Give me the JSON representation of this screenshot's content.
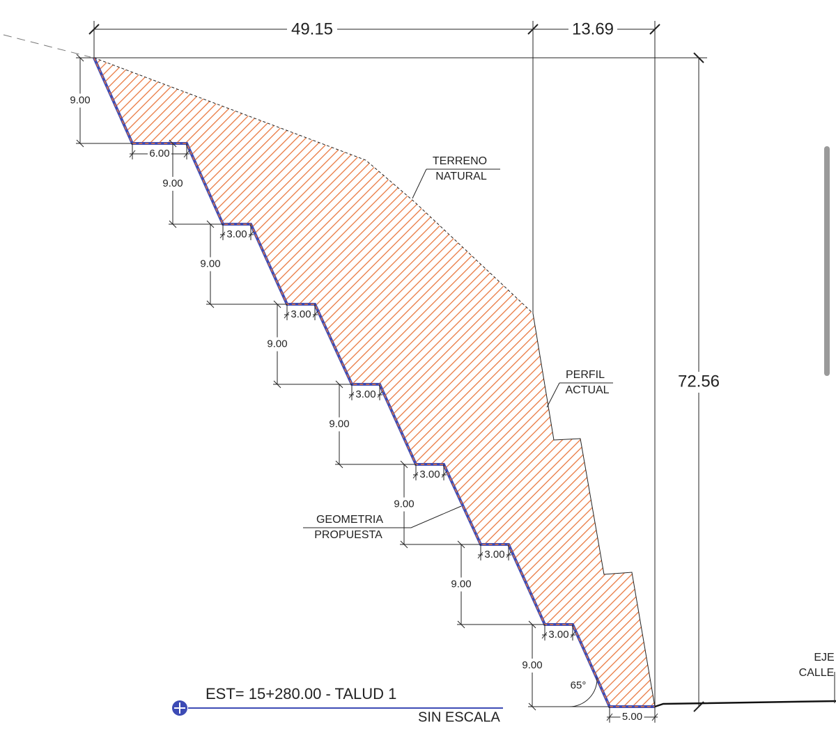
{
  "dimensions": {
    "top_left": "49.15",
    "top_right": "13.69",
    "total_height": "72.56",
    "benches": [
      {
        "height": "9.00",
        "width": "6.00"
      },
      {
        "height": "9.00",
        "width": "3.00"
      },
      {
        "height": "9.00",
        "width": "3.00"
      },
      {
        "height": "9.00",
        "width": "3.00"
      },
      {
        "height": "9.00",
        "width": "3.00"
      },
      {
        "height": "9.00",
        "width": "3.00"
      },
      {
        "height": "9.00",
        "width": "3.00"
      },
      {
        "height": "9.00",
        "width": "5.00"
      }
    ],
    "angle": "65°"
  },
  "labels": {
    "terrain": [
      "TERRENO",
      "NATURAL"
    ],
    "profile": [
      "PERFIL",
      "ACTUAL"
    ],
    "geometry": [
      "GEOMETRIA",
      "PROPUESTA"
    ],
    "axis": [
      "EJE",
      "CALLE"
    ]
  },
  "title": {
    "station": "EST= 15+280.00 - TALUD 1",
    "scale": "SIN ESCALA"
  }
}
